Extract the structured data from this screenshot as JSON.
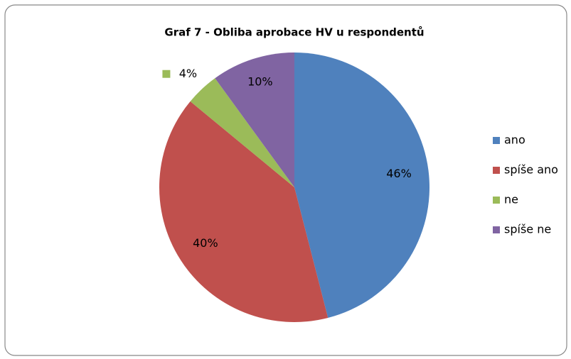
{
  "chart_data": {
    "type": "pie",
    "title": "Graf  7 - Obliba aprobace HV u respondentů",
    "categories": [
      "ano",
      "spíše ano",
      "ne",
      "spíše ne"
    ],
    "values": [
      46,
      40,
      4,
      10
    ],
    "value_labels": [
      "46%",
      "40%",
      "4%",
      "10%"
    ],
    "colors": [
      "#4f81bd",
      "#c0504d",
      "#9bbb59",
      "#8064a2"
    ],
    "legend": "right"
  }
}
